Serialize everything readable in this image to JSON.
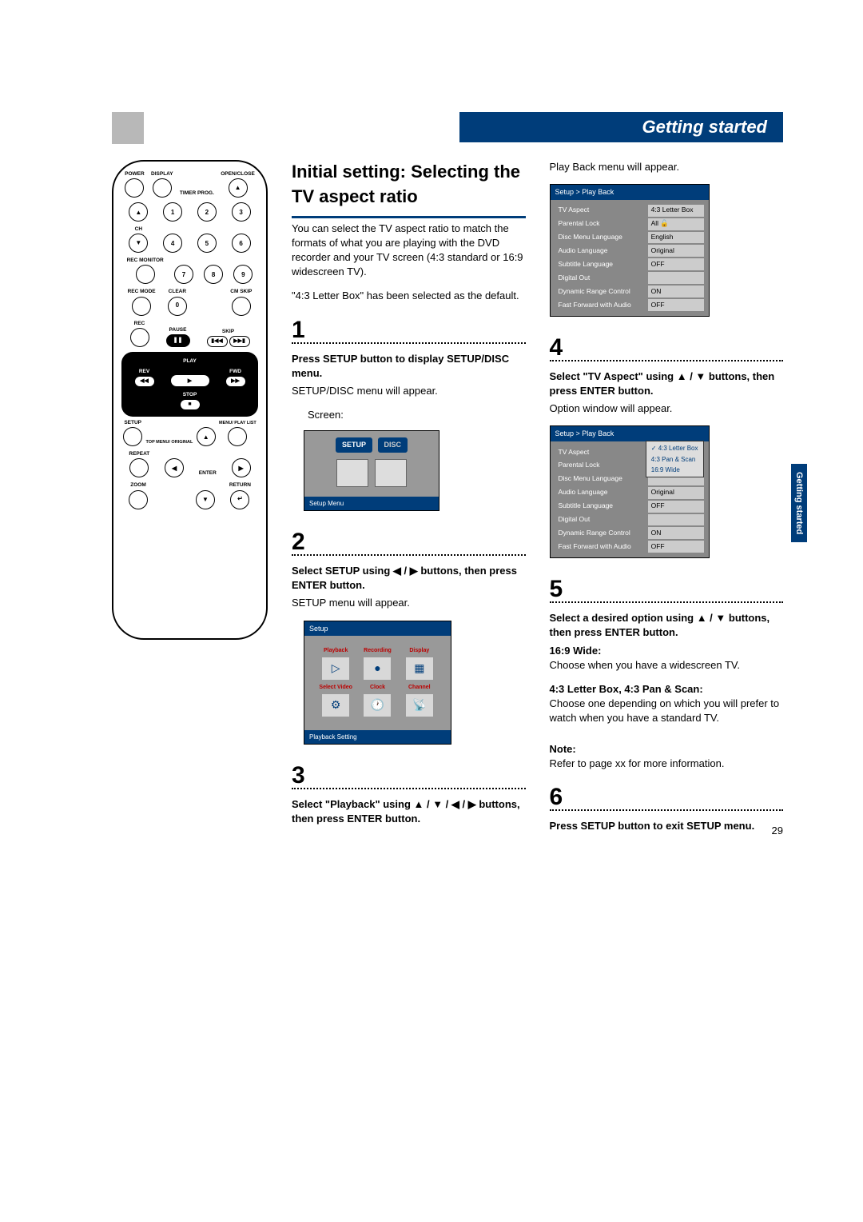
{
  "page_number": "29",
  "header": "Getting started",
  "side_tab": "Getting started",
  "remote": {
    "row1": [
      "POWER",
      "DISPLAY",
      "TIMER PROG.",
      "OPEN/CLOSE"
    ],
    "numbers": [
      "1",
      "2",
      "3",
      "4",
      "5",
      "6",
      "7",
      "8",
      "9",
      "0"
    ],
    "ch": "CH",
    "rec_monitor": "REC MONITOR",
    "rec_mode": "REC MODE",
    "clear": "CLEAR",
    "cm_skip": "CM SKIP",
    "rec": "REC",
    "pause": "PAUSE",
    "skip": "SKIP",
    "rev": "REV",
    "play": "PLAY",
    "fwd": "FWD",
    "stop": "STOP",
    "setup": "SETUP",
    "top_menu": "TOP MENU/\nORIGINAL",
    "menu": "MENU/\nPLAY LIST",
    "repeat": "REPEAT",
    "enter": "ENTER",
    "zoom": "ZOOM",
    "return": "RETURN"
  },
  "title": "Initial setting: Selecting the TV aspect ratio",
  "intro": "You can select the TV aspect ratio to match the formats of what you are playing with the DVD recorder and your TV screen (4:3 standard or 16:9 widescreen TV).",
  "intro2": "\"4:3 Letter Box\" has been selected as the default.",
  "step1": {
    "num": "1",
    "head": "Press SETUP button to display SETUP/DISC menu.",
    "body": "SETUP/DISC menu will appear.",
    "screen_label": "Screen:",
    "tabs": [
      "SETUP",
      "DISC"
    ],
    "footer": "Setup Menu"
  },
  "step2": {
    "num": "2",
    "head": "Select SETUP using ◀ / ▶ buttons, then press ENTER button.",
    "body": "SETUP menu will appear.",
    "header": "Setup",
    "cells": [
      "Playback",
      "Recording",
      "Display",
      "Select Video",
      "Clock",
      "Channel"
    ],
    "icons": [
      "▷",
      "●",
      "▦",
      "⚙",
      "🕐",
      "📡"
    ],
    "footer": "Playback Setting"
  },
  "step3": {
    "num": "3",
    "head": "Select \"Playback\" using ▲ / ▼ / ◀ / ▶ buttons, then press ENTER button."
  },
  "col2_intro": "Play Back menu will appear.",
  "playback_table": {
    "header": "Setup > Play Back",
    "rows": [
      [
        "TV Aspect",
        "4:3 Letter Box"
      ],
      [
        "Parental Lock",
        "All   🔓"
      ],
      [
        "Disc Menu Language",
        "English"
      ],
      [
        "Audio Language",
        "Original"
      ],
      [
        "Subtitle Language",
        "OFF"
      ],
      [
        "Digital Out",
        ""
      ],
      [
        "Dynamic Range Control",
        "ON"
      ],
      [
        "Fast Forward with Audio",
        "OFF"
      ]
    ]
  },
  "step4": {
    "num": "4",
    "head": "Select \"TV Aspect\" using ▲ / ▼ buttons, then press ENTER button.",
    "body": "Option window will appear."
  },
  "playback_table2": {
    "header": "Setup > Play Back",
    "rows": [
      [
        "TV Aspect",
        ""
      ],
      [
        "Parental Lock",
        ""
      ],
      [
        "Disc Menu Language",
        ""
      ],
      [
        "Audio Language",
        "Original"
      ],
      [
        "Subtitle Language",
        "OFF"
      ],
      [
        "Digital Out",
        ""
      ],
      [
        "Dynamic Range Control",
        "ON"
      ],
      [
        "Fast Forward with Audio",
        "OFF"
      ]
    ],
    "popup": [
      "✓ 4:3 Letter Box",
      "4:3 Pan & Scan",
      "16:9 Wide"
    ]
  },
  "step5": {
    "num": "5",
    "head": "Select a desired option using ▲ / ▼ buttons, then press ENTER button.",
    "opt1_h": "16:9 Wide:",
    "opt1_b": "Choose when you have a widescreen TV.",
    "opt2_h": "4:3 Letter Box, 4:3 Pan & Scan:",
    "opt2_b": "Choose one depending on which you will prefer to watch when you have a standard TV.",
    "note_h": "Note:",
    "note_b": "Refer to page xx for more information."
  },
  "step6": {
    "num": "6",
    "head": "Press SETUP button to exit SETUP menu."
  }
}
